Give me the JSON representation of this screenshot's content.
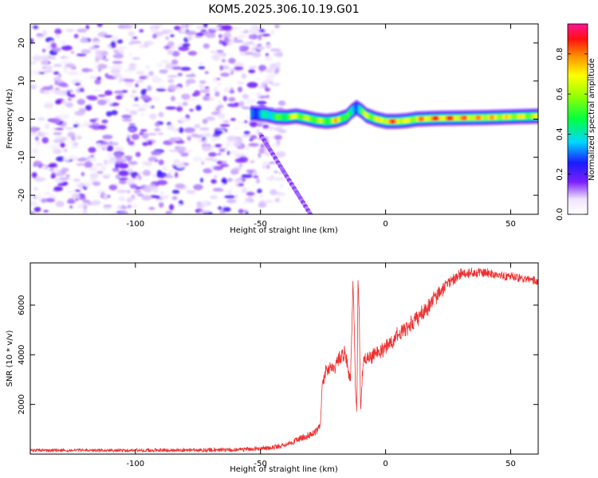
{
  "title": "KOM5.2025.306.10.19.G01",
  "spectrogram": {
    "xlabel": "Height of straight line (km)",
    "ylabel": "Frequency (Hz)",
    "xlim": [
      -142,
      61
    ],
    "ylim": [
      -25,
      25
    ],
    "xticks": [
      -100,
      -50,
      0,
      50
    ],
    "yticks": [
      -20,
      -10,
      0,
      10,
      20
    ],
    "colorbar": {
      "label": "Normalized spectral amplitude",
      "range": [
        0.0,
        0.95
      ],
      "ticks": [
        "0.0",
        "0.2",
        "0.4",
        "0.6",
        "0.8"
      ]
    }
  },
  "chart_data": [
    {
      "type": "heatmap",
      "xlabel": "Height of straight line (km)",
      "ylabel": "Frequency (Hz)",
      "xlim": [
        -142,
        61
      ],
      "ylim": [
        -25,
        25
      ],
      "colorbar_label": "Normalized spectral amplitude",
      "noise_region_x": [
        -142,
        -43
      ],
      "noise_amplitude_range": [
        0.0,
        0.25
      ],
      "ridge": {
        "x": [
          -54,
          -48,
          -44,
          -40,
          -36,
          -32,
          -28,
          -24,
          -20,
          -16,
          -14,
          -12,
          -10,
          -8,
          -4,
          0,
          4,
          8,
          12,
          20,
          30,
          40,
          50,
          61
        ],
        "freq_hz": [
          1.5,
          1.2,
          0.6,
          0.5,
          0.8,
          0.3,
          -0.3,
          -0.6,
          -0.3,
          0.6,
          2.0,
          3.0,
          2.2,
          1.0,
          0.0,
          -0.6,
          -0.6,
          -0.4,
          0.0,
          0.2,
          0.3,
          0.4,
          0.6,
          0.8
        ],
        "amplitude": [
          0.35,
          0.45,
          0.55,
          0.6,
          0.75,
          0.65,
          0.7,
          0.6,
          0.8,
          0.6,
          0.45,
          0.4,
          0.55,
          0.75,
          0.7,
          0.85,
          0.9,
          0.7,
          0.8,
          0.9,
          0.85,
          0.8,
          0.75,
          0.7
        ]
      },
      "diagonal_streak": {
        "x_start": -50,
        "freq_start": -4,
        "x_end": -30,
        "freq_end": -25,
        "amplitude": 0.2
      }
    },
    {
      "type": "line",
      "xlabel": "Height of straight line (km)",
      "ylabel": "SNR (10 * v/v)",
      "xlim": [
        -142,
        61
      ],
      "ylim": [
        0,
        7700
      ],
      "xticks": [
        -100,
        -50,
        0,
        50
      ],
      "yticks": [
        2000,
        4000,
        6000
      ],
      "color": "#ee3030",
      "envelope": {
        "x": [
          -142,
          -110,
          -80,
          -60,
          -45,
          -38,
          -32,
          -28,
          -26,
          -25.5,
          -24,
          -20,
          -18,
          -16,
          -15,
          -14,
          -13,
          -12.5,
          -12,
          -11.5,
          -11,
          -10.5,
          -10,
          -9,
          -7,
          -4,
          0,
          5,
          10,
          15,
          20,
          25,
          30,
          35,
          40,
          45,
          50,
          55,
          61
        ],
        "y": [
          150,
          150,
          160,
          170,
          260,
          450,
          700,
          900,
          1200,
          2600,
          3300,
          3500,
          3900,
          4100,
          3400,
          3000,
          7000,
          5000,
          2500,
          1700,
          7000,
          5500,
          1700,
          3700,
          3900,
          4000,
          4300,
          4800,
          5200,
          5700,
          6300,
          6900,
          7250,
          7300,
          7300,
          7200,
          7150,
          7050,
          6950
        ]
      },
      "noise_amplitude": [
        60,
        60,
        70,
        80,
        90,
        100,
        120,
        140,
        150,
        200,
        250,
        280,
        280,
        280,
        300,
        200,
        150,
        150,
        150,
        150,
        150,
        150,
        150,
        250,
        250,
        260,
        270,
        280,
        300,
        300,
        280,
        230,
        200,
        180,
        170,
        160,
        150,
        150,
        150
      ]
    }
  ]
}
